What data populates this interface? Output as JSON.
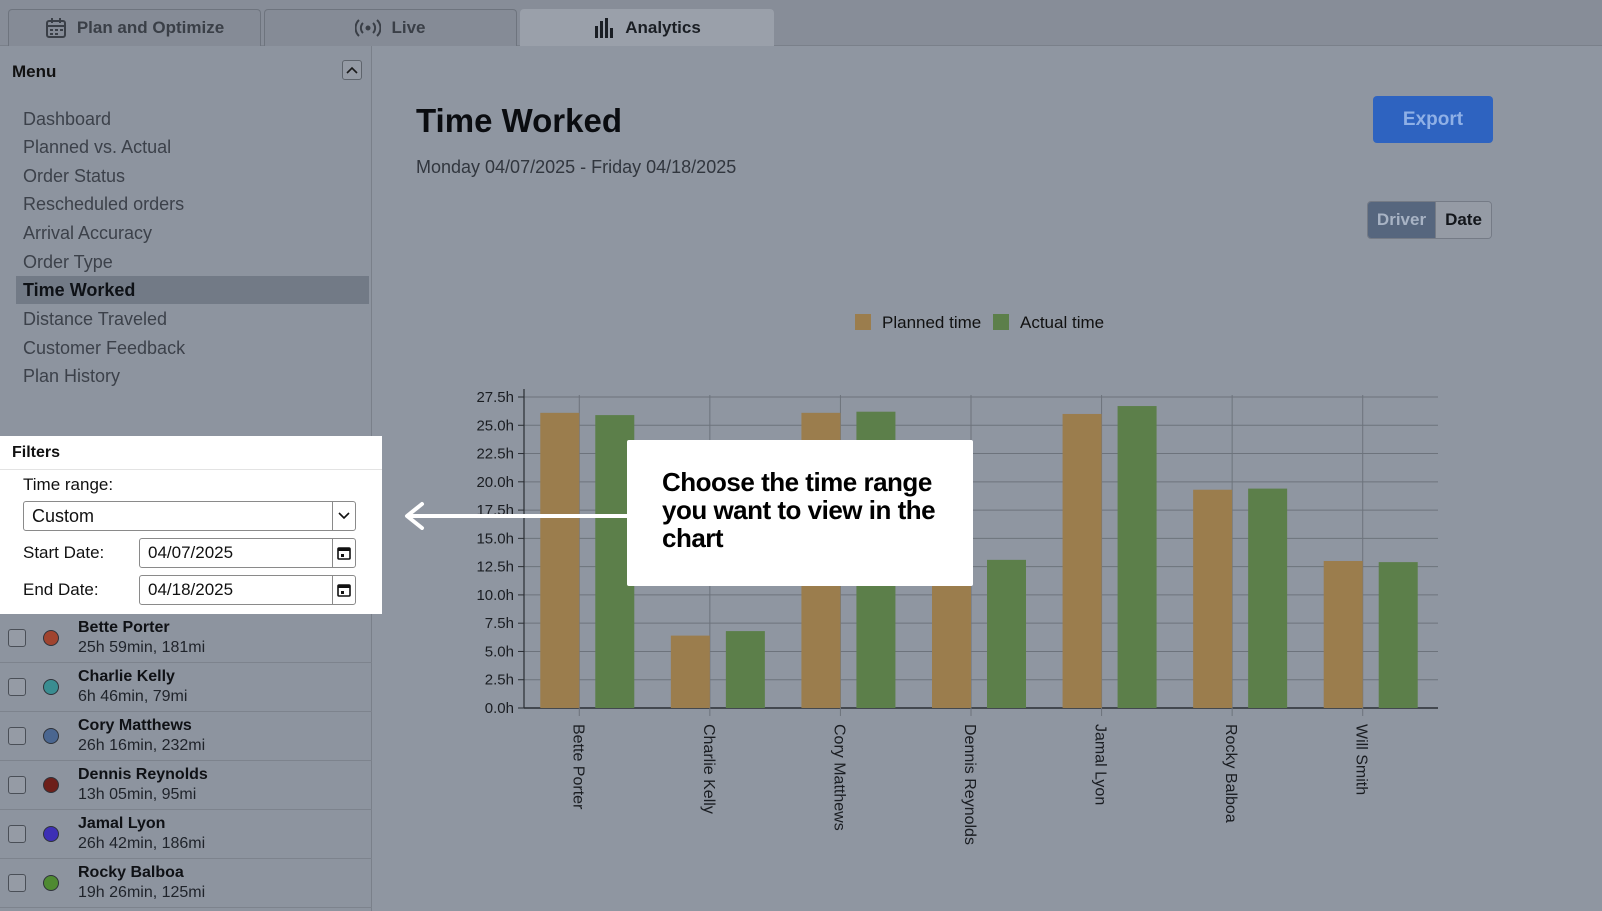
{
  "tabs": [
    {
      "label": "Plan and Optimize",
      "icon": "calendar-icon"
    },
    {
      "label": "Live",
      "icon": "broadcast-icon"
    },
    {
      "label": "Analytics",
      "icon": "bar-chart-icon"
    }
  ],
  "sidebar": {
    "menu_title": "Menu",
    "items": [
      {
        "label": "Dashboard"
      },
      {
        "label": "Planned vs. Actual"
      },
      {
        "label": "Order Status"
      },
      {
        "label": "Rescheduled orders"
      },
      {
        "label": "Arrival Accuracy"
      },
      {
        "label": "Order Type"
      },
      {
        "label": "Time Worked"
      },
      {
        "label": "Distance Traveled"
      },
      {
        "label": "Customer Feedback"
      },
      {
        "label": "Plan History"
      }
    ],
    "active_item": "Time Worked"
  },
  "filters": {
    "title": "Filters",
    "time_range_label": "Time range:",
    "time_range_value": "Custom",
    "start_label": "Start Date:",
    "start_value": "04/07/2025",
    "end_label": "End Date:",
    "end_value": "04/18/2025"
  },
  "drivers": [
    {
      "name": "Bette Porter",
      "meta": "25h 59min, 181mi",
      "color": "#a0442f"
    },
    {
      "name": "Charlie Kelly",
      "meta": "6h 46min, 79mi",
      "color": "#3a8d91"
    },
    {
      "name": "Cory Matthews",
      "meta": "26h 16min, 232mi",
      "color": "#4a6690"
    },
    {
      "name": "Dennis Reynolds",
      "meta": "13h 05min, 95mi",
      "color": "#6d1f1a"
    },
    {
      "name": "Jamal Lyon",
      "meta": "26h 42min, 186mi",
      "color": "#3d2fb5"
    },
    {
      "name": "Rocky Balboa",
      "meta": "19h 26min, 125mi",
      "color": "#4f8a32"
    }
  ],
  "main": {
    "title": "Time Worked",
    "date_range": "Monday 04/07/2025 - Friday 04/18/2025",
    "export_label": "Export",
    "toggle": {
      "driver": "Driver",
      "date": "Date",
      "selected": "Driver"
    }
  },
  "callout": {
    "text": "Choose the time range you want to view in the chart"
  },
  "chart_data": {
    "type": "bar",
    "categories": [
      "Bette Porter",
      "Charlie Kelly",
      "Cory Matthews",
      "Dennis Reynolds",
      "Jamal Lyon",
      "Rocky Balboa",
      "Will Smith"
    ],
    "series": [
      {
        "name": "Planned time",
        "color": "#9b7d4d",
        "values": [
          26.1,
          6.4,
          26.1,
          13.0,
          26.0,
          19.3,
          13.0
        ]
      },
      {
        "name": "Actual time",
        "color": "#5c7f4a",
        "values": [
          25.9,
          6.8,
          26.2,
          13.1,
          26.7,
          19.4,
          12.9
        ]
      }
    ],
    "yticks": [
      "0.0h",
      "2.5h",
      "5.0h",
      "7.5h",
      "10.0h",
      "12.5h",
      "15.0h",
      "17.5h",
      "20.0h",
      "22.5h",
      "25.0h",
      "27.5h"
    ],
    "ylim": [
      0,
      27.5
    ],
    "grid": true,
    "legend_position": "top-center"
  }
}
